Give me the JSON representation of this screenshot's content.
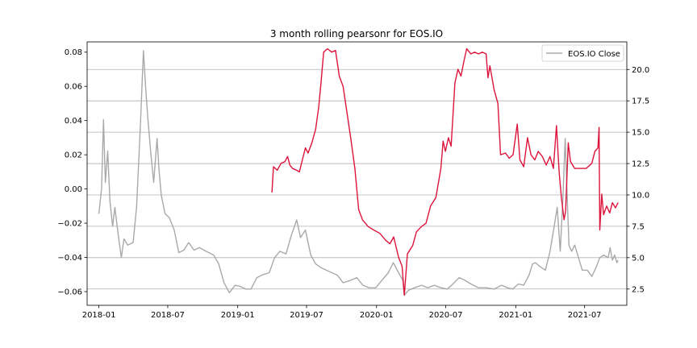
{
  "chart_data": {
    "type": "line",
    "title": "3 month rolling pearsonr for EOS.IO",
    "xlabel": "",
    "ylabel_left": "",
    "ylabel_right": "",
    "legend": {
      "placement": "top-right",
      "entries": [
        "EOS.IO Close"
      ]
    },
    "grid": "horizontal, right axis",
    "x_range": [
      "2017-12-01",
      "2021-10-20"
    ],
    "x_ticks": [
      "2018-01",
      "2018-07",
      "2019-01",
      "2019-07",
      "2020-01",
      "2020-07",
      "2021-01",
      "2021-07"
    ],
    "y_left": {
      "range": [
        -0.068,
        0.086
      ],
      "ticks": [
        -0.06,
        -0.04,
        -0.02,
        0.0,
        0.02,
        0.04,
        0.06,
        0.08
      ],
      "tick_labels": [
        "−0.06",
        "−0.04",
        "−0.02",
        "0.00",
        "0.02",
        "0.04",
        "0.06",
        "0.08"
      ]
    },
    "y_right": {
      "range": [
        1.2,
        22.2
      ],
      "ticks": [
        2.5,
        5.0,
        7.5,
        10.0,
        12.5,
        15.0,
        17.5,
        20.0
      ],
      "tick_labels": [
        "2.5",
        "5.0",
        "7.5",
        "10.0",
        "12.5",
        "15.0",
        "17.5",
        "20.0"
      ]
    },
    "series": [
      {
        "name": "EOS.IO Close",
        "axis": "right",
        "color": "#a9a9a9",
        "points": [
          [
            "2018-01-01",
            8.5
          ],
          [
            "2018-01-08",
            10.5
          ],
          [
            "2018-01-13",
            16.0
          ],
          [
            "2018-01-18",
            11.0
          ],
          [
            "2018-01-24",
            13.5
          ],
          [
            "2018-01-30",
            9.5
          ],
          [
            "2018-02-06",
            7.5
          ],
          [
            "2018-02-12",
            9.0
          ],
          [
            "2018-02-20",
            7.0
          ],
          [
            "2018-03-01",
            5.0
          ],
          [
            "2018-03-08",
            6.5
          ],
          [
            "2018-03-18",
            6.0
          ],
          [
            "2018-04-01",
            6.2
          ],
          [
            "2018-04-10",
            9.0
          ],
          [
            "2018-04-20",
            15.5
          ],
          [
            "2018-04-28",
            21.5
          ],
          [
            "2018-05-04",
            18.5
          ],
          [
            "2018-05-10",
            16.0
          ],
          [
            "2018-05-17",
            13.5
          ],
          [
            "2018-05-25",
            11.0
          ],
          [
            "2018-06-03",
            14.5
          ],
          [
            "2018-06-08",
            12.0
          ],
          [
            "2018-06-14",
            10.0
          ],
          [
            "2018-06-24",
            8.5
          ],
          [
            "2018-07-05",
            8.2
          ],
          [
            "2018-07-18",
            7.2
          ],
          [
            "2018-07-30",
            5.4
          ],
          [
            "2018-08-12",
            5.6
          ],
          [
            "2018-08-25",
            6.2
          ],
          [
            "2018-09-08",
            5.6
          ],
          [
            "2018-09-22",
            5.8
          ],
          [
            "2018-10-10",
            5.5
          ],
          [
            "2018-10-30",
            5.2
          ],
          [
            "2018-11-12",
            4.5
          ],
          [
            "2018-11-26",
            3.0
          ],
          [
            "2018-12-10",
            2.2
          ],
          [
            "2018-12-25",
            2.8
          ],
          [
            "2019-01-08",
            2.7
          ],
          [
            "2019-01-22",
            2.5
          ],
          [
            "2019-02-05",
            2.5
          ],
          [
            "2019-02-20",
            3.4
          ],
          [
            "2019-03-05",
            3.6
          ],
          [
            "2019-03-25",
            3.8
          ],
          [
            "2019-04-08",
            5.0
          ],
          [
            "2019-04-22",
            5.5
          ],
          [
            "2019-05-08",
            5.3
          ],
          [
            "2019-05-22",
            6.8
          ],
          [
            "2019-06-05",
            8.0
          ],
          [
            "2019-06-15",
            6.6
          ],
          [
            "2019-06-28",
            7.2
          ],
          [
            "2019-07-12",
            5.2
          ],
          [
            "2019-07-25",
            4.5
          ],
          [
            "2019-08-08",
            4.2
          ],
          [
            "2019-08-22",
            4.0
          ],
          [
            "2019-09-05",
            3.8
          ],
          [
            "2019-09-20",
            3.6
          ],
          [
            "2019-10-05",
            3.0
          ],
          [
            "2019-10-25",
            3.2
          ],
          [
            "2019-11-10",
            3.4
          ],
          [
            "2019-11-26",
            2.8
          ],
          [
            "2019-12-12",
            2.6
          ],
          [
            "2019-12-30",
            2.6
          ],
          [
            "2020-01-15",
            3.2
          ],
          [
            "2020-02-01",
            3.8
          ],
          [
            "2020-02-14",
            4.6
          ],
          [
            "2020-02-28",
            3.8
          ],
          [
            "2020-03-10",
            3.2
          ],
          [
            "2020-03-14",
            2.0
          ],
          [
            "2020-03-25",
            2.4
          ],
          [
            "2020-04-10",
            2.6
          ],
          [
            "2020-04-28",
            2.8
          ],
          [
            "2020-05-15",
            2.6
          ],
          [
            "2020-06-01",
            2.8
          ],
          [
            "2020-06-18",
            2.6
          ],
          [
            "2020-07-05",
            2.5
          ],
          [
            "2020-07-20",
            2.9
          ],
          [
            "2020-08-05",
            3.4
          ],
          [
            "2020-08-20",
            3.2
          ],
          [
            "2020-09-05",
            2.9
          ],
          [
            "2020-09-25",
            2.6
          ],
          [
            "2020-10-15",
            2.6
          ],
          [
            "2020-11-05",
            2.5
          ],
          [
            "2020-11-25",
            2.8
          ],
          [
            "2020-12-10",
            2.6
          ],
          [
            "2020-12-24",
            2.5
          ],
          [
            "2021-01-08",
            2.9
          ],
          [
            "2021-01-22",
            2.8
          ],
          [
            "2021-02-05",
            3.6
          ],
          [
            "2021-02-14",
            4.5
          ],
          [
            "2021-02-22",
            4.6
          ],
          [
            "2021-03-05",
            4.3
          ],
          [
            "2021-03-20",
            4.0
          ],
          [
            "2021-04-01",
            5.5
          ],
          [
            "2021-04-12",
            7.5
          ],
          [
            "2021-04-20",
            9.0
          ],
          [
            "2021-04-28",
            5.5
          ],
          [
            "2021-05-05",
            9.8
          ],
          [
            "2021-05-11",
            14.5
          ],
          [
            "2021-05-16",
            10.0
          ],
          [
            "2021-05-21",
            6.0
          ],
          [
            "2021-05-28",
            5.5
          ],
          [
            "2021-06-05",
            6.0
          ],
          [
            "2021-06-15",
            5.0
          ],
          [
            "2021-06-25",
            4.0
          ],
          [
            "2021-07-08",
            4.0
          ],
          [
            "2021-07-20",
            3.5
          ],
          [
            "2021-07-31",
            4.2
          ],
          [
            "2021-08-10",
            5.0
          ],
          [
            "2021-08-20",
            5.2
          ],
          [
            "2021-09-01",
            5.0
          ],
          [
            "2021-09-06",
            5.8
          ],
          [
            "2021-09-12",
            4.8
          ],
          [
            "2021-09-18",
            5.2
          ],
          [
            "2021-09-24",
            4.6
          ],
          [
            "2021-09-27",
            4.8
          ]
        ]
      },
      {
        "name": "",
        "axis": "left",
        "color": "#dc143c",
        "points": [
          [
            "2019-04-01",
            -0.002
          ],
          [
            "2019-04-05",
            0.013
          ],
          [
            "2019-04-15",
            0.011
          ],
          [
            "2019-04-25",
            0.015
          ],
          [
            "2019-05-05",
            0.016
          ],
          [
            "2019-05-12",
            0.019
          ],
          [
            "2019-05-18",
            0.014
          ],
          [
            "2019-05-25",
            0.012
          ],
          [
            "2019-06-05",
            0.011
          ],
          [
            "2019-06-12",
            0.01
          ],
          [
            "2019-06-20",
            0.017
          ],
          [
            "2019-06-28",
            0.024
          ],
          [
            "2019-07-05",
            0.021
          ],
          [
            "2019-07-15",
            0.027
          ],
          [
            "2019-07-25",
            0.035
          ],
          [
            "2019-08-02",
            0.048
          ],
          [
            "2019-08-08",
            0.062
          ],
          [
            "2019-08-15",
            0.08
          ],
          [
            "2019-08-25",
            0.082
          ],
          [
            "2019-09-05",
            0.08
          ],
          [
            "2019-09-15",
            0.081
          ],
          [
            "2019-09-25",
            0.066
          ],
          [
            "2019-10-05",
            0.06
          ],
          [
            "2019-10-15",
            0.045
          ],
          [
            "2019-10-25",
            0.03
          ],
          [
            "2019-11-05",
            0.012
          ],
          [
            "2019-11-15",
            -0.012
          ],
          [
            "2019-11-25",
            -0.018
          ],
          [
            "2019-12-10",
            -0.022
          ],
          [
            "2019-12-25",
            -0.024
          ],
          [
            "2020-01-10",
            -0.026
          ],
          [
            "2020-01-25",
            -0.03
          ],
          [
            "2020-02-05",
            -0.032
          ],
          [
            "2020-02-15",
            -0.028
          ],
          [
            "2020-02-28",
            -0.04
          ],
          [
            "2020-03-08",
            -0.045
          ],
          [
            "2020-03-14",
            -0.062
          ],
          [
            "2020-03-22",
            -0.038
          ],
          [
            "2020-04-05",
            -0.033
          ],
          [
            "2020-04-15",
            -0.025
          ],
          [
            "2020-04-28",
            -0.022
          ],
          [
            "2020-05-10",
            -0.02
          ],
          [
            "2020-05-22",
            -0.01
          ],
          [
            "2020-06-05",
            -0.005
          ],
          [
            "2020-06-12",
            0.004
          ],
          [
            "2020-06-18",
            0.012
          ],
          [
            "2020-06-24",
            0.028
          ],
          [
            "2020-06-30",
            0.022
          ],
          [
            "2020-07-08",
            0.03
          ],
          [
            "2020-07-15",
            0.025
          ],
          [
            "2020-07-25",
            0.062
          ],
          [
            "2020-08-02",
            0.07
          ],
          [
            "2020-08-10",
            0.066
          ],
          [
            "2020-08-18",
            0.075
          ],
          [
            "2020-08-25",
            0.082
          ],
          [
            "2020-09-05",
            0.079
          ],
          [
            "2020-09-15",
            0.08
          ],
          [
            "2020-09-25",
            0.079
          ],
          [
            "2020-10-05",
            0.08
          ],
          [
            "2020-10-15",
            0.079
          ],
          [
            "2020-10-20",
            0.065
          ],
          [
            "2020-10-25",
            0.072
          ],
          [
            "2020-11-05",
            0.058
          ],
          [
            "2020-11-15",
            0.05
          ],
          [
            "2020-11-22",
            0.02
          ],
          [
            "2020-12-05",
            0.021
          ],
          [
            "2020-12-15",
            0.018
          ],
          [
            "2020-12-25",
            0.02
          ],
          [
            "2021-01-05",
            0.038
          ],
          [
            "2021-01-12",
            0.017
          ],
          [
            "2021-01-22",
            0.013
          ],
          [
            "2021-02-01",
            0.03
          ],
          [
            "2021-02-10",
            0.02
          ],
          [
            "2021-02-20",
            0.017
          ],
          [
            "2021-03-01",
            0.022
          ],
          [
            "2021-03-12",
            0.019
          ],
          [
            "2021-03-22",
            0.014
          ],
          [
            "2021-04-01",
            0.019
          ],
          [
            "2021-04-10",
            0.012
          ],
          [
            "2021-04-18",
            0.037
          ],
          [
            "2021-04-25",
            0.01
          ],
          [
            "2021-05-01",
            -0.005
          ],
          [
            "2021-05-08",
            -0.018
          ],
          [
            "2021-05-12",
            -0.013
          ],
          [
            "2021-05-19",
            0.027
          ],
          [
            "2021-05-25",
            0.016
          ],
          [
            "2021-06-05",
            0.012
          ],
          [
            "2021-06-20",
            0.012
          ],
          [
            "2021-07-05",
            0.012
          ],
          [
            "2021-07-20",
            0.015
          ],
          [
            "2021-07-28",
            0.022
          ],
          [
            "2021-08-05",
            0.024
          ],
          [
            "2021-08-08",
            0.036
          ],
          [
            "2021-08-10",
            -0.024
          ],
          [
            "2021-08-15",
            -0.003
          ],
          [
            "2021-08-20",
            -0.015
          ],
          [
            "2021-08-28",
            -0.01
          ],
          [
            "2021-09-05",
            -0.014
          ],
          [
            "2021-09-12",
            -0.008
          ],
          [
            "2021-09-20",
            -0.011
          ],
          [
            "2021-09-27",
            -0.008
          ]
        ]
      }
    ]
  }
}
